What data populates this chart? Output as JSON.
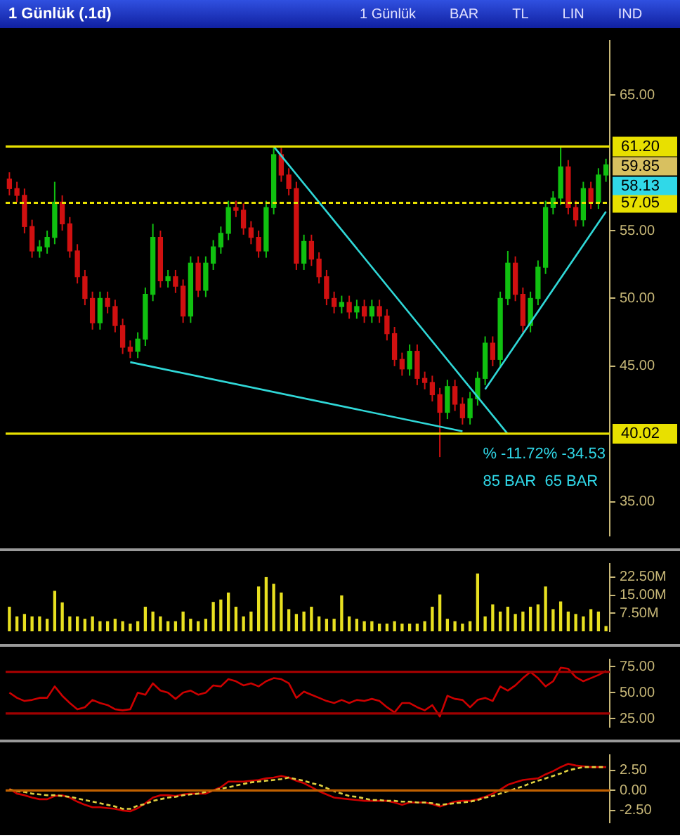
{
  "chart_data": [
    {
      "type": "other",
      "title": "1 Günlük (.1d)",
      "annotations": [
        "1 Günlük",
        "BAR",
        "TL",
        "LIN",
        "IND"
      ]
    },
    {
      "type": "candlestick",
      "categories": [
        null,
        null,
        null,
        null,
        null,
        null,
        null,
        null,
        null,
        null,
        null,
        null,
        null,
        null,
        null,
        null,
        null,
        null,
        null,
        null,
        null,
        null,
        null,
        null,
        null,
        null,
        null,
        null,
        null,
        null,
        null,
        null,
        null,
        null,
        null,
        null,
        null,
        null,
        null,
        null,
        null,
        null,
        null,
        null,
        null,
        null,
        null,
        null,
        null,
        null,
        null,
        null,
        null,
        null,
        null,
        null,
        null,
        null,
        null,
        null,
        null,
        null,
        null,
        null,
        null,
        null,
        null,
        null,
        null,
        null,
        null,
        null,
        null,
        null,
        null,
        null,
        null,
        null,
        null,
        null
      ],
      "ohlc": [
        [
          58.8,
          59.3,
          57.6,
          58.1
        ],
        [
          58.1,
          58.6,
          57.1,
          57.6
        ],
        [
          57.6,
          58.1,
          54.8,
          55.3
        ],
        [
          55.3,
          55.8,
          53.0,
          53.5
        ],
        [
          53.5,
          54.3,
          53.0,
          53.8
        ],
        [
          53.8,
          55.0,
          53.3,
          54.5
        ],
        [
          54.5,
          58.6,
          54.0,
          57.1
        ],
        [
          57.1,
          57.6,
          55.0,
          55.5
        ],
        [
          55.5,
          56.0,
          53.0,
          53.5
        ],
        [
          53.5,
          54.0,
          51.1,
          51.6
        ],
        [
          51.6,
          52.1,
          49.5,
          50.0
        ],
        [
          50.0,
          50.5,
          47.7,
          48.2
        ],
        [
          48.2,
          50.5,
          47.7,
          50.0
        ],
        [
          50.0,
          50.5,
          48.9,
          49.4
        ],
        [
          49.4,
          49.9,
          47.5,
          48.0
        ],
        [
          48.0,
          48.5,
          45.9,
          46.4
        ],
        [
          46.4,
          46.9,
          45.6,
          46.1
        ],
        [
          46.1,
          47.5,
          45.6,
          47.0
        ],
        [
          47.0,
          50.8,
          46.5,
          50.3
        ],
        [
          50.3,
          55.5,
          49.8,
          54.5
        ],
        [
          54.5,
          55.0,
          50.8,
          51.3
        ],
        [
          51.3,
          52.1,
          50.8,
          51.6
        ],
        [
          51.6,
          52.1,
          50.4,
          50.9
        ],
        [
          50.9,
          51.4,
          48.2,
          48.7
        ],
        [
          48.7,
          53.1,
          48.2,
          52.6
        ],
        [
          52.6,
          53.1,
          50.1,
          50.6
        ],
        [
          50.6,
          53.1,
          50.1,
          52.6
        ],
        [
          52.6,
          54.3,
          52.1,
          53.8
        ],
        [
          53.8,
          55.3,
          53.3,
          54.8
        ],
        [
          54.8,
          57.2,
          54.3,
          56.7
        ],
        [
          56.7,
          57.2,
          56.0,
          56.5
        ],
        [
          56.5,
          57.0,
          54.7,
          55.2
        ],
        [
          55.2,
          55.7,
          54.0,
          54.5
        ],
        [
          54.5,
          55.0,
          53.0,
          53.5
        ],
        [
          53.5,
          57.2,
          53.0,
          56.7
        ],
        [
          56.7,
          61.2,
          56.2,
          60.6
        ],
        [
          60.6,
          61.1,
          58.6,
          59.1
        ],
        [
          59.1,
          59.6,
          57.6,
          58.1
        ],
        [
          58.1,
          58.6,
          52.1,
          52.6
        ],
        [
          52.6,
          54.7,
          52.1,
          54.2
        ],
        [
          54.2,
          54.7,
          52.4,
          52.9
        ],
        [
          52.9,
          53.4,
          51.1,
          51.6
        ],
        [
          51.6,
          52.1,
          49.5,
          50.0
        ],
        [
          50.0,
          50.5,
          48.9,
          49.4
        ],
        [
          49.4,
          50.2,
          48.9,
          49.7
        ],
        [
          49.7,
          50.2,
          48.5,
          49.0
        ],
        [
          49.0,
          49.9,
          48.5,
          49.4
        ],
        [
          49.4,
          49.9,
          48.2,
          48.7
        ],
        [
          48.7,
          49.9,
          48.2,
          49.4
        ],
        [
          49.4,
          49.9,
          48.2,
          48.7
        ],
        [
          48.7,
          49.2,
          46.9,
          47.4
        ],
        [
          47.4,
          47.9,
          45.0,
          45.5
        ],
        [
          45.5,
          46.0,
          44.3,
          44.8
        ],
        [
          44.8,
          46.6,
          44.3,
          46.1
        ],
        [
          46.1,
          46.6,
          43.6,
          44.1
        ],
        [
          44.1,
          44.6,
          43.3,
          43.8
        ],
        [
          43.8,
          44.3,
          42.4,
          42.9
        ],
        [
          42.9,
          43.4,
          38.3,
          41.6
        ],
        [
          41.6,
          44.0,
          41.1,
          43.5
        ],
        [
          43.5,
          44.0,
          41.7,
          42.2
        ],
        [
          42.2,
          42.7,
          40.7,
          41.2
        ],
        [
          41.2,
          43.1,
          40.7,
          42.6
        ],
        [
          42.6,
          44.6,
          42.1,
          44.1
        ],
        [
          44.1,
          47.2,
          43.6,
          46.7
        ],
        [
          46.7,
          47.2,
          45.0,
          45.5
        ],
        [
          45.5,
          50.5,
          45.0,
          50.0
        ],
        [
          50.0,
          53.5,
          49.5,
          52.6
        ],
        [
          52.6,
          53.1,
          49.8,
          50.3
        ],
        [
          50.3,
          50.8,
          47.5,
          48.0
        ],
        [
          48.0,
          50.5,
          47.5,
          50.0
        ],
        [
          50.0,
          52.8,
          49.5,
          52.3
        ],
        [
          52.3,
          57.2,
          51.8,
          56.7
        ],
        [
          56.7,
          57.9,
          56.2,
          57.4
        ],
        [
          57.4,
          61.2,
          56.9,
          59.7
        ],
        [
          59.7,
          60.2,
          56.2,
          56.7
        ],
        [
          56.7,
          57.2,
          55.3,
          55.8
        ],
        [
          55.8,
          58.6,
          55.3,
          58.1
        ],
        [
          58.1,
          58.6,
          56.6,
          57.1
        ],
        [
          57.1,
          59.6,
          56.6,
          59.1
        ],
        [
          59.1,
          60.3,
          58.6,
          59.85
        ]
      ],
      "series": [
        {
          "type": "line",
          "color": "#30d8d8",
          "values": [
            null,
            null,
            null,
            null,
            null,
            null,
            null,
            null,
            null,
            null,
            null,
            null,
            null,
            null,
            null,
            null,
            null,
            null,
            null,
            null,
            null,
            null,
            null,
            null,
            null,
            null,
            null,
            null,
            null,
            null,
            null,
            null,
            null,
            null,
            null,
            61.2,
            null,
            null,
            null,
            null,
            null,
            null,
            null,
            null,
            null,
            null,
            null,
            null,
            null,
            null,
            null,
            null,
            null,
            null,
            null,
            null,
            null,
            null,
            null,
            null,
            null,
            null,
            null,
            null,
            null,
            null,
            40.0,
            null,
            null,
            null,
            null,
            null,
            null,
            null,
            null,
            null,
            null,
            null,
            null,
            null
          ]
        },
        {
          "type": "line",
          "color": "#30d8d8",
          "values": [
            null,
            null,
            null,
            null,
            null,
            null,
            null,
            null,
            null,
            null,
            null,
            null,
            null,
            null,
            null,
            null,
            45.3,
            null,
            null,
            null,
            null,
            null,
            null,
            null,
            null,
            null,
            null,
            null,
            null,
            null,
            null,
            null,
            null,
            null,
            null,
            null,
            null,
            null,
            null,
            null,
            null,
            null,
            null,
            null,
            null,
            null,
            null,
            null,
            null,
            null,
            null,
            null,
            null,
            null,
            null,
            null,
            null,
            null,
            null,
            null,
            40.2,
            null,
            null,
            null,
            null,
            null,
            null,
            null,
            null,
            null,
            null,
            null,
            null,
            null,
            null,
            null,
            null,
            null,
            null,
            null
          ]
        },
        {
          "type": "line",
          "color": "#30d8d8",
          "values": [
            null,
            null,
            null,
            null,
            null,
            null,
            null,
            null,
            null,
            null,
            null,
            null,
            null,
            null,
            null,
            null,
            null,
            null,
            null,
            null,
            null,
            null,
            null,
            null,
            null,
            null,
            null,
            null,
            null,
            null,
            null,
            null,
            null,
            null,
            null,
            null,
            null,
            null,
            null,
            null,
            null,
            null,
            null,
            null,
            null,
            null,
            null,
            null,
            null,
            null,
            null,
            null,
            null,
            null,
            null,
            null,
            null,
            null,
            null,
            null,
            null,
            null,
            null,
            43.3,
            null,
            null,
            null,
            null,
            null,
            null,
            null,
            null,
            null,
            null,
            null,
            null,
            null,
            null,
            null,
            56.4
          ]
        }
      ],
      "ylim": [
        32.5,
        69
      ],
      "yticks": [
        {
          "value": 35,
          "label": "35.00"
        },
        {
          "value": 45,
          "label": "45.00"
        },
        {
          "value": 50,
          "label": "50.00"
        },
        {
          "value": 55,
          "label": "55.00"
        },
        {
          "value": 65,
          "label": "65.00"
        }
      ],
      "ref_lines": [
        {
          "axis": "y",
          "value": 61.2,
          "label": "61.20",
          "color": "#e8e000"
        },
        {
          "axis": "y",
          "value": 57.05,
          "label": "57.05",
          "color": "#e8e000",
          "line_style": "dashed"
        },
        {
          "axis": "y",
          "value": 40.02,
          "label": "40.02",
          "color": "#e8e000"
        }
      ],
      "annotations": [
        "% -11.72% -34.53",
        "85 BAR  65 BAR",
        "59.85",
        "58.13"
      ],
      "tick_labels": "y"
    },
    {
      "type": "bar",
      "categories": [
        null,
        null,
        null,
        null,
        null,
        null,
        null,
        null,
        null,
        null,
        null,
        null,
        null,
        null,
        null,
        null,
        null,
        null,
        null,
        null,
        null,
        null,
        null,
        null,
        null,
        null,
        null,
        null,
        null,
        null,
        null,
        null,
        null,
        null,
        null,
        null,
        null,
        null,
        null,
        null,
        null,
        null,
        null,
        null,
        null,
        null,
        null,
        null,
        null,
        null,
        null,
        null,
        null,
        null,
        null,
        null,
        null,
        null,
        null,
        null,
        null,
        null,
        null,
        null,
        null,
        null,
        null,
        null,
        null,
        null,
        null,
        null,
        null,
        null,
        null,
        null,
        null,
        null,
        null,
        null
      ],
      "values": [
        10,
        6,
        7,
        6,
        6,
        5,
        16.6,
        11.8,
        6,
        6,
        5,
        6,
        4,
        4,
        5,
        4,
        3,
        4,
        10,
        8,
        6,
        4,
        4,
        8,
        5,
        4,
        5,
        12,
        13,
        15.9,
        10,
        6,
        8,
        18.4,
        22.3,
        19.5,
        15.9,
        9,
        7,
        8,
        10,
        6,
        5,
        5,
        14.7,
        6,
        5,
        4,
        4,
        3,
        3,
        4,
        3,
        3,
        3,
        4,
        10,
        15.1,
        5,
        4,
        3,
        4,
        23.8,
        6,
        11,
        8,
        10,
        7,
        8,
        10,
        11,
        18.4,
        9,
        12.2,
        8,
        7,
        6,
        9,
        8,
        2
      ],
      "color": "#e8e020",
      "ylim": [
        0,
        28
      ],
      "yticks": [
        {
          "value": 7.5,
          "label": "7.50M"
        },
        {
          "value": 15,
          "label": "15.00M"
        },
        {
          "value": 22.5,
          "label": "22.50M"
        }
      ],
      "tick_labels": "y"
    },
    {
      "type": "line",
      "categories": [
        null,
        null,
        null,
        null,
        null,
        null,
        null,
        null,
        null,
        null,
        null,
        null,
        null,
        null,
        null,
        null,
        null,
        null,
        null,
        null,
        null,
        null,
        null,
        null,
        null,
        null,
        null,
        null,
        null,
        null,
        null,
        null,
        null,
        null,
        null,
        null,
        null,
        null,
        null,
        null,
        null,
        null,
        null,
        null,
        null,
        null,
        null,
        null,
        null,
        null,
        null,
        null,
        null,
        null,
        null,
        null,
        null,
        null,
        null,
        null,
        null,
        null,
        null,
        null,
        null,
        null,
        null,
        null,
        null,
        null,
        null,
        null,
        null,
        null,
        null,
        null,
        null,
        null,
        null,
        null
      ],
      "values": [
        50,
        45,
        42,
        43,
        45,
        45,
        56,
        47,
        40,
        34,
        36,
        43,
        40,
        38,
        34,
        33,
        34,
        50,
        48,
        59,
        52,
        50,
        44,
        50,
        52,
        48,
        50,
        57,
        56,
        63,
        61,
        57,
        59,
        56,
        61,
        64,
        63,
        59,
        45,
        51,
        48,
        45,
        42,
        40,
        43,
        40,
        43,
        42,
        44,
        42,
        36,
        31,
        40,
        40,
        36,
        33,
        38,
        27,
        47,
        44,
        43,
        36,
        43,
        45,
        42,
        56,
        52,
        57,
        64,
        70,
        64,
        56,
        61,
        74,
        73,
        65,
        61,
        64,
        67,
        71
      ],
      "color": "#cc0000",
      "ylim": [
        17,
        82
      ],
      "yticks": [
        {
          "value": 25,
          "label": "25.00"
        },
        {
          "value": 50,
          "label": "50.00"
        },
        {
          "value": 75,
          "label": "75.00"
        }
      ],
      "ref_lines": [
        {
          "axis": "y",
          "value": 70,
          "color": "#a00000"
        },
        {
          "axis": "y",
          "value": 30,
          "color": "#a00000"
        }
      ],
      "tick_labels": "y"
    },
    {
      "type": "line",
      "categories": [
        null,
        null,
        null,
        null,
        null,
        null,
        null,
        null,
        null,
        null,
        null,
        null,
        null,
        null,
        null,
        null,
        null,
        null,
        null,
        null,
        null,
        null,
        null,
        null,
        null,
        null,
        null,
        null,
        null,
        null,
        null,
        null,
        null,
        null,
        null,
        null,
        null,
        null,
        null,
        null,
        null,
        null,
        null,
        null,
        null,
        null,
        null,
        null,
        null,
        null,
        null,
        null,
        null,
        null,
        null,
        null,
        null,
        null,
        null,
        null,
        null,
        null,
        null,
        null,
        null,
        null,
        null,
        null,
        null,
        null,
        null,
        null,
        null,
        null,
        null,
        null,
        null,
        null,
        null,
        null
      ],
      "series": [
        {
          "color": "#cc0000",
          "values": [
            0.2,
            -0.4,
            -0.6,
            -0.9,
            -1.1,
            -1.1,
            -0.7,
            -0.6,
            -0.9,
            -1.4,
            -1.8,
            -2.1,
            -2.1,
            -2.2,
            -2.3,
            -2.5,
            -2.6,
            -2.2,
            -1.6,
            -0.9,
            -0.6,
            -0.6,
            -0.7,
            -0.5,
            -0.4,
            -0.4,
            -0.4,
            0,
            0.4,
            1.1,
            1.1,
            1.1,
            1.2,
            1.3,
            1.5,
            1.6,
            1.8,
            1.6,
            1.2,
            0.9,
            0.4,
            -0.1,
            -0.5,
            -0.9,
            -1.0,
            -1.1,
            -1.2,
            -1.3,
            -1.3,
            -1.3,
            -1.3,
            -1.5,
            -1.8,
            -1.5,
            -1.5,
            -1.5,
            -1.7,
            -2.0,
            -1.7,
            -1.4,
            -1.3,
            -1.3,
            -1.1,
            -0.8,
            -0.4,
            0.1,
            0.7,
            1.0,
            1.3,
            1.4,
            1.5,
            2.0,
            2.4,
            2.9,
            3.3,
            3.1,
            3.0,
            2.9,
            2.9,
            2.9
          ]
        },
        {
          "color": "#e0d040",
          "line_style": "dashed",
          "values": [
            0.1,
            -0.1,
            -0.2,
            -0.4,
            -0.5,
            -0.6,
            -0.6,
            -0.7,
            -0.8,
            -1.0,
            -1.2,
            -1.4,
            -1.6,
            -1.8,
            -2.0,
            -2.3,
            -2.3,
            -1.9,
            -1.7,
            -1.3,
            -1.1,
            -0.9,
            -0.8,
            -0.6,
            -0.5,
            -0.4,
            -0.2,
            0,
            0.2,
            0.4,
            0.6,
            0.8,
            1.0,
            1.1,
            1.2,
            1.3,
            1.4,
            1.6,
            1.4,
            1.2,
            0.9,
            0.7,
            0.3,
            -0.1,
            -0.4,
            -0.7,
            -0.8,
            -1.0,
            -1.2,
            -1.2,
            -1.3,
            -1.3,
            -1.4,
            -1.4,
            -1.5,
            -1.5,
            -1.6,
            -1.8,
            -1.7,
            -1.6,
            -1.5,
            -1.4,
            -1.2,
            -0.9,
            -0.7,
            -0.4,
            -0.1,
            0.2,
            0.5,
            0.9,
            1.2,
            1.5,
            1.8,
            2.1,
            2.5,
            2.7,
            2.9,
            2.9,
            2.9,
            2.9
          ]
        }
      ],
      "ylim": [
        -4,
        4.4
      ],
      "yticks": [
        {
          "value": -2.5,
          "label": "-2.50"
        },
        {
          "value": 0,
          "label": "0.00"
        },
        {
          "value": 2.5,
          "label": "2.50"
        }
      ],
      "ref_lines": [
        {
          "axis": "y",
          "value": 0,
          "color": "#c06000"
        }
      ],
      "tick_labels": "y"
    }
  ]
}
